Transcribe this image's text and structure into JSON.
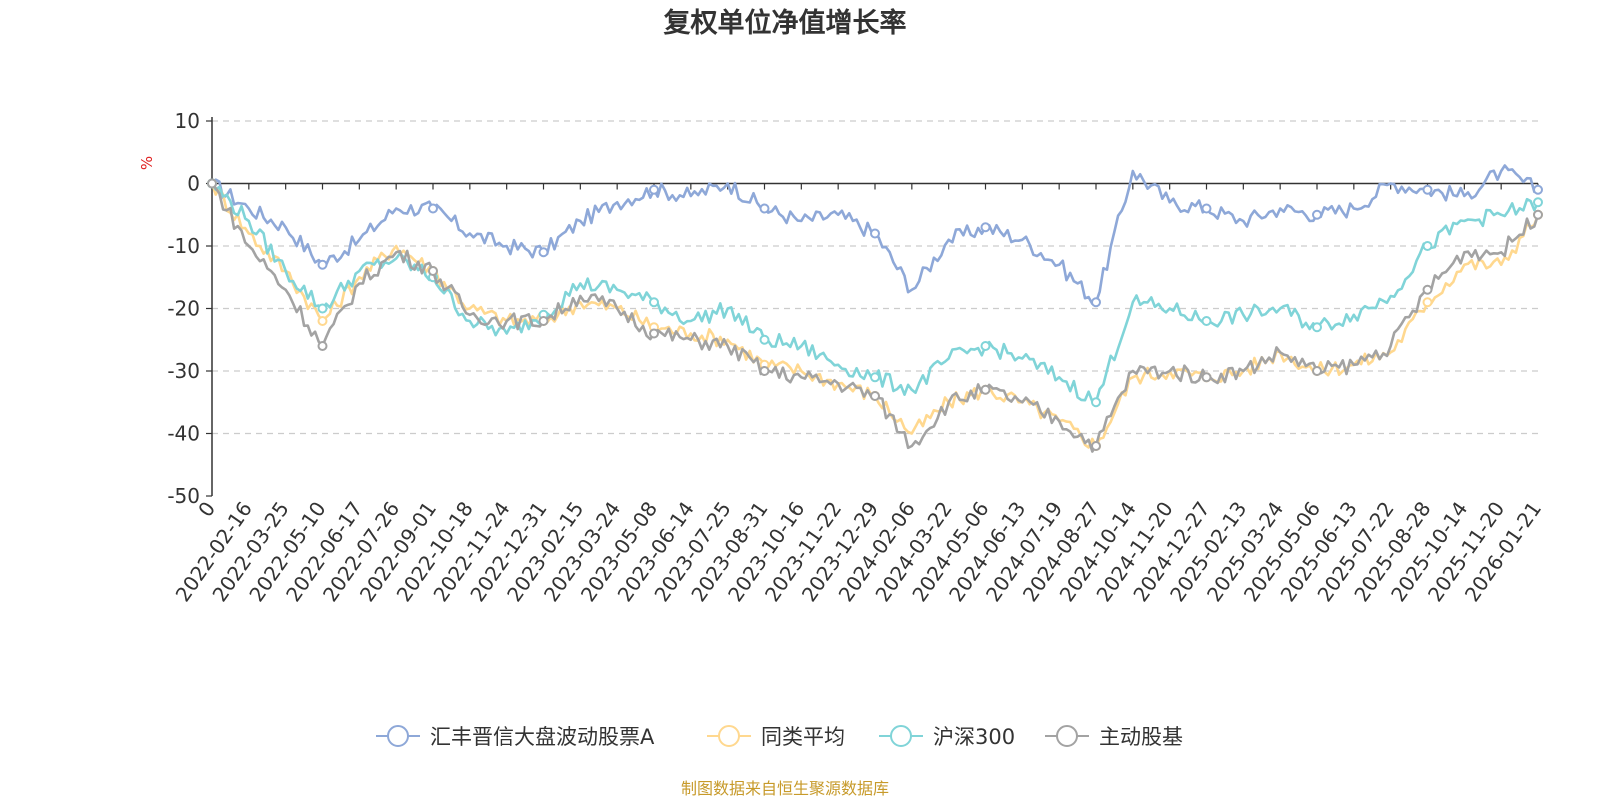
{
  "chart_data": {
    "type": "line",
    "title": "复权单位净值增长率",
    "ylabel": "%",
    "xlabel": "",
    "ylim": [
      -50,
      10
    ],
    "yticks": [
      10,
      0,
      -10,
      -20,
      -30,
      -40,
      -50
    ],
    "categories": [
      "0",
      "2022-02-16",
      "2022-03-25",
      "2022-05-10",
      "2022-06-17",
      "2022-07-26",
      "2022-09-01",
      "2022-10-18",
      "2022-11-24",
      "2022-12-31",
      "2023-02-15",
      "2023-03-24",
      "2023-05-08",
      "2023-06-14",
      "2023-07-25",
      "2023-08-31",
      "2023-10-16",
      "2023-11-22",
      "2023-12-29",
      "2024-02-06",
      "2024-03-22",
      "2024-05-06",
      "2024-06-13",
      "2024-07-19",
      "2024-08-27",
      "2024-10-14",
      "2024-11-20",
      "2024-12-27",
      "2025-02-13",
      "2025-03-24",
      "2025-05-06",
      "2025-06-13",
      "2025-07-22",
      "2025-08-28",
      "2025-10-14",
      "2025-11-20",
      "2026-01-21"
    ],
    "grid": true,
    "legend_position": "bottom",
    "series": [
      {
        "name": "汇丰晋信大盘波动股票A",
        "color": "#8ea8d8",
        "values": [
          0,
          -4,
          -7,
          -13,
          -9,
          -4,
          -4,
          -8,
          -10,
          -11,
          -6,
          -3,
          -1,
          -2,
          0,
          -4,
          -6,
          -5,
          -8,
          -17,
          -9,
          -7,
          -9,
          -13,
          -19,
          2,
          -3,
          -4,
          -6,
          -4,
          -5,
          -4,
          0,
          -1,
          -2,
          2,
          -1
        ]
      },
      {
        "name": "同类平均",
        "color": "#ffd88f",
        "values": [
          0,
          -8,
          -14,
          -22,
          -15,
          -10,
          -14,
          -20,
          -22,
          -22,
          -19,
          -20,
          -23,
          -24,
          -25,
          -29,
          -30,
          -32,
          -34,
          -40,
          -35,
          -33,
          -35,
          -38,
          -42,
          -31,
          -30,
          -31,
          -30,
          -27,
          -30,
          -29,
          -27,
          -19,
          -13,
          -13,
          -5
        ]
      },
      {
        "name": "沪深300",
        "color": "#80d4d8",
        "values": [
          0,
          -6,
          -14,
          -20,
          -14,
          -12,
          -15,
          -22,
          -24,
          -21,
          -16,
          -17,
          -19,
          -22,
          -20,
          -25,
          -26,
          -29,
          -31,
          -33,
          -28,
          -26,
          -28,
          -31,
          -35,
          -19,
          -20,
          -22,
          -21,
          -20,
          -23,
          -21,
          -18,
          -10,
          -6,
          -5,
          -3
        ]
      },
      {
        "name": "主动股基",
        "color": "#a3a3a3",
        "values": [
          0,
          -10,
          -17,
          -26,
          -16,
          -11,
          -14,
          -21,
          -22,
          -22,
          -18,
          -20,
          -24,
          -25,
          -26,
          -30,
          -31,
          -32,
          -34,
          -42,
          -35,
          -33,
          -35,
          -38,
          -42,
          -30,
          -30,
          -31,
          -30,
          -27,
          -30,
          -29,
          -26,
          -17,
          -11,
          -11,
          -5
        ]
      }
    ]
  },
  "legend": {
    "items": [
      "汇丰晋信大盘波动股票A",
      "同类平均",
      "沪深300",
      "主动股基"
    ]
  },
  "source_text": "制图数据来自恒生聚源数据库"
}
